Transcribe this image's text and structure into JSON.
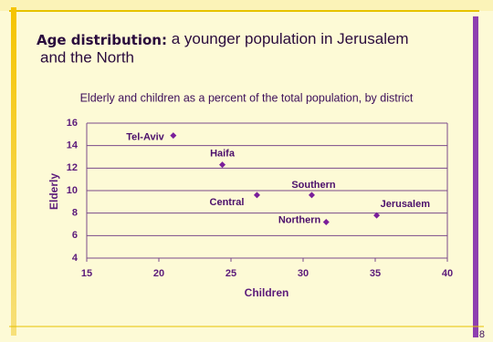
{
  "title_bold": "Age distribution:",
  "title_rest_line1": "a younger population in Jerusalem",
  "title_rest_line2": "and the North",
  "page_number": "8",
  "chart_data": {
    "type": "scatter",
    "subtitle": "Elderly and children as a percent of the total population, by district",
    "x_label": "Children",
    "y_label": "Elderly",
    "labels": [
      "Tel-Aviv",
      "Haifa",
      "Central",
      "Southern",
      "Northern",
      "Jerusalem"
    ],
    "x": [
      21.0,
      24.4,
      26.8,
      30.6,
      31.6,
      35.1
    ],
    "y": [
      14.9,
      12.3,
      9.6,
      9.6,
      7.2,
      7.8
    ],
    "color": "#7a1f9a",
    "xlim": [
      15,
      40
    ],
    "ylim": [
      4,
      16
    ],
    "xticks": [
      15,
      20,
      25,
      30,
      35,
      40
    ],
    "yticks": [
      4,
      6,
      8,
      10,
      12,
      14,
      16
    ],
    "grid": true
  }
}
